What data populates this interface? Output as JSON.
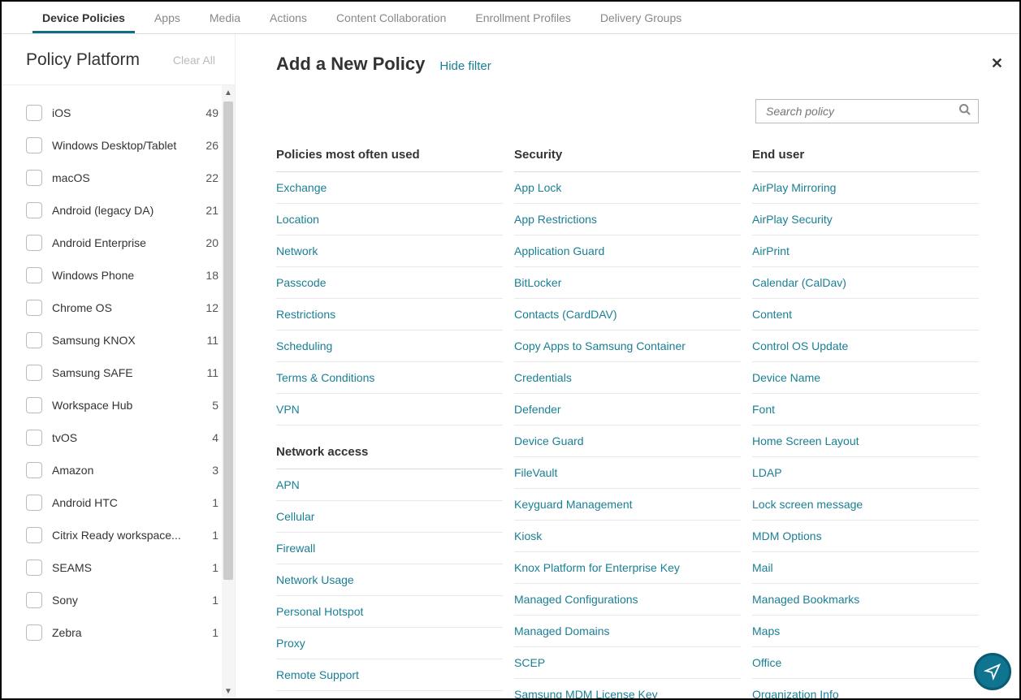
{
  "tabs": [
    {
      "label": "Device Policies",
      "active": true
    },
    {
      "label": "Apps"
    },
    {
      "label": "Media"
    },
    {
      "label": "Actions"
    },
    {
      "label": "Content Collaboration"
    },
    {
      "label": "Enrollment Profiles"
    },
    {
      "label": "Delivery Groups"
    }
  ],
  "sidebar": {
    "title": "Policy Platform",
    "clear_all": "Clear All",
    "platforms": [
      {
        "label": "iOS",
        "count": "49"
      },
      {
        "label": "Windows Desktop/Tablet",
        "count": "26"
      },
      {
        "label": "macOS",
        "count": "22"
      },
      {
        "label": "Android (legacy DA)",
        "count": "21"
      },
      {
        "label": "Android Enterprise",
        "count": "20"
      },
      {
        "label": "Windows Phone",
        "count": "18"
      },
      {
        "label": "Chrome OS",
        "count": "12"
      },
      {
        "label": "Samsung KNOX",
        "count": "11"
      },
      {
        "label": "Samsung SAFE",
        "count": "11"
      },
      {
        "label": "Workspace Hub",
        "count": "5"
      },
      {
        "label": "tvOS",
        "count": "4"
      },
      {
        "label": "Amazon",
        "count": "3"
      },
      {
        "label": "Android HTC",
        "count": "1"
      },
      {
        "label": "Citrix Ready workspace...",
        "count": "1"
      },
      {
        "label": "SEAMS",
        "count": "1"
      },
      {
        "label": "Sony",
        "count": "1"
      },
      {
        "label": "Zebra",
        "count": "1"
      }
    ]
  },
  "content": {
    "title": "Add a New Policy",
    "hide_filter": "Hide filter",
    "search_placeholder": "Search policy",
    "sections": {
      "most_used": {
        "header": "Policies most often used",
        "items": [
          "Exchange",
          "Location",
          "Network",
          "Passcode",
          "Restrictions",
          "Scheduling",
          "Terms & Conditions",
          "VPN"
        ]
      },
      "network_access": {
        "header": "Network access",
        "items": [
          "APN",
          "Cellular",
          "Firewall",
          "Network Usage",
          "Personal Hotspot",
          "Proxy",
          "Remote Support"
        ]
      },
      "security": {
        "header": "Security",
        "items": [
          "App Lock",
          "App Restrictions",
          "Application Guard",
          "BitLocker",
          "Contacts (CardDAV)",
          "Copy Apps to Samsung Container",
          "Credentials",
          "Defender",
          "Device Guard",
          "FileVault",
          "Keyguard Management",
          "Kiosk",
          "Knox Platform for Enterprise Key",
          "Managed Configurations",
          "Managed Domains",
          "SCEP",
          "Samsung MDM License Key"
        ]
      },
      "end_user": {
        "header": "End user",
        "items": [
          "AirPlay Mirroring",
          "AirPlay Security",
          "AirPrint",
          "Calendar (CalDav)",
          "Content",
          "Control OS Update",
          "Device Name",
          "Font",
          "Home Screen Layout",
          "LDAP",
          "Lock screen message",
          "MDM Options",
          "Mail",
          "Managed Bookmarks",
          "Maps",
          "Office",
          "Organization Info"
        ]
      }
    }
  },
  "colors": {
    "link": "#1a7f94",
    "tab_underline": "#0f6e84",
    "fab_bg": "#0f7490",
    "fab_border": "#0a5c72",
    "border": "#dcdcdc",
    "text": "#333333",
    "muted": "#888888"
  }
}
